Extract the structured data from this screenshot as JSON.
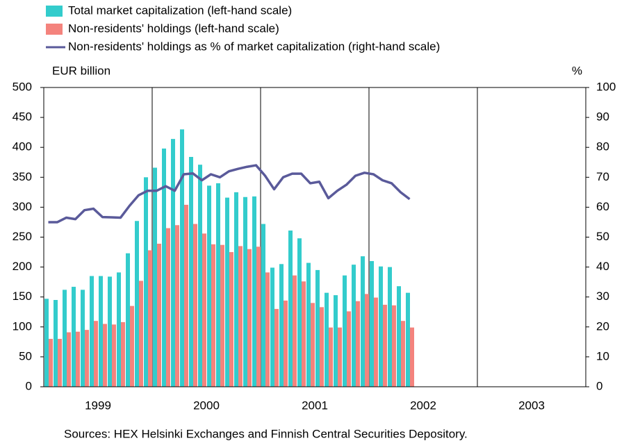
{
  "chart_data": {
    "type": "bar_line",
    "legend": [
      "Total market capitalization (left-hand scale)",
      "Non-residents' holdings (left-hand scale)",
      "Non-residents' holdings as % of market capitalization (right-hand scale)"
    ],
    "y_label": "EUR billion",
    "y2_label": "%",
    "source": "Sources: HEX Helsinki Exchanges and Finnish Central Securities Depository.",
    "categories": [
      null,
      null,
      null,
      null,
      null,
      null,
      null,
      null,
      null,
      null,
      null,
      null,
      null,
      null,
      null,
      null,
      null,
      null,
      null,
      null,
      null,
      null,
      null,
      null,
      null,
      null,
      null,
      null,
      null,
      null,
      null,
      null,
      null,
      null,
      null,
      null,
      null,
      null,
      null,
      null,
      null
    ],
    "xlim": [
      1999,
      2004
    ],
    "xticks": [
      1999,
      2000,
      2001,
      2002,
      2003
    ],
    "ylim": [
      0,
      500
    ],
    "yticks": [
      0,
      50,
      100,
      150,
      200,
      250,
      300,
      350,
      400,
      450,
      500
    ],
    "y2lim": [
      0,
      100
    ],
    "y2ticks": [
      0,
      10,
      20,
      30,
      40,
      50,
      60,
      70,
      80,
      90,
      100
    ],
    "series": [
      {
        "name": "Total market capitalization (left-hand scale)",
        "color": "#33cccc",
        "kind": "bar",
        "values": [
          147,
          145,
          162,
          167,
          162,
          185,
          185,
          184,
          191,
          223,
          277,
          350,
          366,
          398,
          414,
          430,
          384,
          371,
          336,
          340,
          316,
          325,
          317,
          318,
          272,
          199,
          205,
          261,
          248,
          207,
          195,
          157,
          153,
          186,
          204,
          218,
          210,
          201,
          200,
          168,
          157
        ]
      },
      {
        "name": "Non-residents' holdings (left-hand scale)",
        "color": "#f4837d",
        "kind": "bar",
        "values": [
          80,
          80,
          91,
          92,
          95,
          110,
          105,
          104,
          108,
          135,
          177,
          228,
          239,
          265,
          270,
          304,
          272,
          256,
          238,
          237,
          225,
          235,
          230,
          234,
          191,
          130,
          144,
          186,
          176,
          140,
          133,
          99,
          99,
          126,
          143,
          155,
          149,
          137,
          136,
          110,
          99
        ]
      },
      {
        "name": "Non-residents' holdings as % of market capitalization (right-hand scale)",
        "color": "#5a5a9a",
        "kind": "line",
        "axis": "y2",
        "values": [
          55,
          55,
          56.5,
          56,
          59,
          59.5,
          56.7,
          56.6,
          56.5,
          60.5,
          64,
          65.5,
          65.5,
          67,
          65.5,
          71,
          71.3,
          69,
          71,
          70,
          72,
          72.8,
          73.5,
          74,
          70.5,
          66,
          70,
          71.2,
          71.2,
          68,
          68.5,
          63,
          65.5,
          67.5,
          70.5,
          71.5,
          71,
          69,
          68,
          65,
          62.7
        ]
      }
    ]
  }
}
